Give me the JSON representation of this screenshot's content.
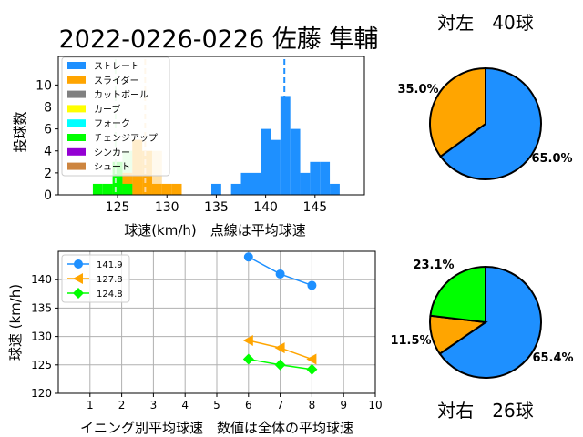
{
  "chart_data": [
    {
      "type": "bar",
      "title": "2022-0226-0226 佐藤 隼輔",
      "xlabel": "球速(km/h)　点線は平均球速",
      "ylabel": "投球数",
      "xlim": [
        119,
        150
      ],
      "ylim": [
        0,
        12.6
      ],
      "x_ticks": [
        125,
        130,
        135,
        140,
        145
      ],
      "y_ticks": [
        0,
        2,
        4,
        6,
        8,
        10
      ],
      "grid": false,
      "legend_position": "top-left",
      "series": [
        {
          "name": "ストレート",
          "color": "#1E90FF",
          "alpha": 1.0,
          "bins": [
            [
              134.5,
              135.5,
              1
            ],
            [
              136.5,
              137.5,
              1
            ],
            [
              137.5,
              138.5,
              2
            ],
            [
              138.5,
              139.5,
              2
            ],
            [
              139.5,
              140.5,
              6
            ],
            [
              140.5,
              141.5,
              5
            ],
            [
              141.5,
              142.5,
              9
            ],
            [
              142.5,
              143.5,
              6
            ],
            [
              143.5,
              144.5,
              2
            ],
            [
              144.5,
              145.5,
              3
            ],
            [
              145.5,
              146.5,
              3
            ],
            [
              146.5,
              147.5,
              1
            ]
          ],
          "mean": 141.9
        },
        {
          "name": "スライダー",
          "color": "#FFA500",
          "alpha": 1.0,
          "bins": [
            [
              124.5,
              125.5,
              1
            ],
            [
              125.5,
              126.5,
              2
            ],
            [
              126.5,
              127.5,
              5
            ],
            [
              127.5,
              128.5,
              4
            ],
            [
              128.5,
              129.5,
              1
            ],
            [
              129.5,
              130.5,
              1
            ],
            [
              130.5,
              131.5,
              1
            ]
          ],
          "mean": 127.8
        },
        {
          "name": "カットボール",
          "color": "#808080",
          "alpha": 1.0,
          "bins": []
        },
        {
          "name": "カーブ",
          "color": "#FFFF00",
          "alpha": 1.0,
          "bins": []
        },
        {
          "name": "フォーク",
          "color": "#00FFFF",
          "alpha": 1.0,
          "bins": []
        },
        {
          "name": "チェンジアップ",
          "color": "#00FF00",
          "alpha": 1.0,
          "bins": [
            [
              122.5,
              123.5,
              1
            ],
            [
              123.5,
              124.5,
              1
            ],
            [
              124.5,
              125.5,
              3
            ],
            [
              125.5,
              126.5,
              1
            ]
          ],
          "mean": 124.8
        },
        {
          "name": "シンカー",
          "color": "#9400D3",
          "alpha": 1.0,
          "bins": []
        },
        {
          "name": "シュート",
          "color": "#CD853F",
          "alpha": 1.0,
          "bins": []
        }
      ],
      "faded_bins": [
        {
          "color": "#FFA500",
          "bins": [
            [
              126.5,
              127.5,
              5
            ],
            [
              127.5,
              128.5,
              4
            ],
            [
              128.5,
              129.5,
              4
            ]
          ]
        },
        {
          "color": "#00FF00",
          "bins": [
            [
              125.5,
              126.5,
              4
            ],
            [
              126.5,
              127.5,
              2
            ]
          ]
        }
      ]
    },
    {
      "type": "line",
      "xlabel": "イニング別平均球速　数値は全体の平均球速",
      "ylabel": "球速 (km/h)",
      "xlim": [
        0,
        10
      ],
      "ylim": [
        120,
        145
      ],
      "x_ticks": [
        1,
        2,
        3,
        4,
        5,
        6,
        7,
        8,
        9,
        10
      ],
      "y_ticks": [
        120,
        125,
        130,
        135,
        140
      ],
      "grid": true,
      "legend_position": "top-left",
      "series": [
        {
          "name": "141.9",
          "color": "#1E90FF",
          "marker": "circle",
          "x": [
            6,
            7,
            8
          ],
          "values": [
            144,
            141,
            139
          ]
        },
        {
          "name": "127.8",
          "color": "#FFA500",
          "marker": "triangle-left",
          "x": [
            6,
            7,
            8
          ],
          "values": [
            129.3,
            128,
            126
          ]
        },
        {
          "name": "124.8",
          "color": "#00FF00",
          "marker": "diamond",
          "x": [
            6,
            7,
            8
          ],
          "values": [
            126,
            125,
            124.2
          ]
        }
      ]
    },
    {
      "type": "pie",
      "title": "対左　40球",
      "slices": [
        {
          "value": 65.0,
          "label": "65.0%",
          "color": "#1E90FF"
        },
        {
          "value": 35.0,
          "label": "35.0%",
          "color": "#FFA500"
        }
      ]
    },
    {
      "type": "pie",
      "title": "対右　26球",
      "slices": [
        {
          "value": 65.4,
          "label": "65.4%",
          "color": "#1E90FF"
        },
        {
          "value": 11.5,
          "label": "11.5%",
          "color": "#FFA500"
        },
        {
          "value": 23.1,
          "label": "23.1%",
          "color": "#00FF00"
        }
      ]
    }
  ]
}
